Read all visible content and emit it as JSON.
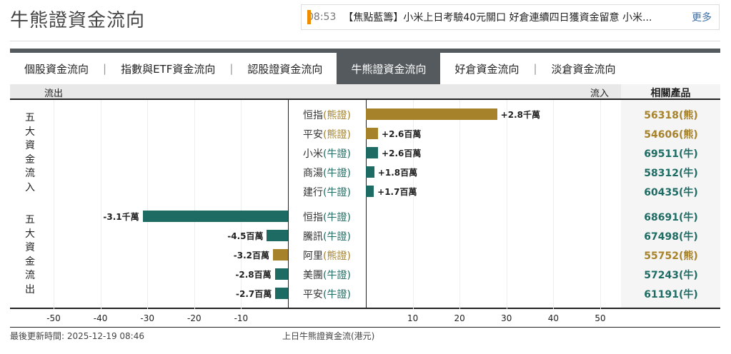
{
  "title": "牛熊證資金流向",
  "news": {
    "time": "08:53",
    "headline": "【焦點藍籌】小米上日考驗40元關口 好倉連續四日獲資金留意 小米...",
    "more": "更多"
  },
  "tabs": [
    {
      "label": "個股資金流向"
    },
    {
      "label": "指數與ETF資金流向"
    },
    {
      "label": "認股證資金流向"
    },
    {
      "label": "牛熊證資金流向",
      "active": true
    },
    {
      "label": "好倉資金流向"
    },
    {
      "label": "淡倉資金流向"
    }
  ],
  "header": {
    "outflow": "流出",
    "inflow": "流入",
    "products": "相關產品"
  },
  "groups": {
    "inflow": "五大資金流入",
    "outflow": "五大資金流出"
  },
  "colors": {
    "bear": "#a6822a",
    "bull": "#1e6b63"
  },
  "chart_data": {
    "type": "bar",
    "xlim": [
      -50,
      50
    ],
    "ticks": [
      "-50",
      "-40",
      "-30",
      "-20",
      "-10",
      "10",
      "20",
      "30",
      "40",
      "50"
    ],
    "xlabel": "上日牛熊證資金流(港元)",
    "inflow": [
      {
        "name": "恒指",
        "kind": "(熊證)",
        "type": "bear",
        "value": 28,
        "label": "+2.8千萬",
        "product": "56318(熊)"
      },
      {
        "name": "平安",
        "kind": "(熊證)",
        "type": "bear",
        "value": 2.6,
        "label": "+2.6百萬",
        "product": "54606(熊)"
      },
      {
        "name": "小米",
        "kind": "(牛證)",
        "type": "bull",
        "value": 2.6,
        "label": "+2.6百萬",
        "product": "69511(牛)"
      },
      {
        "name": "商湯",
        "kind": "(牛證)",
        "type": "bull",
        "value": 1.8,
        "label": "+1.8百萬",
        "product": "58312(牛)"
      },
      {
        "name": "建行",
        "kind": "(牛證)",
        "type": "bull",
        "value": 1.7,
        "label": "+1.7百萬",
        "product": "60435(牛)"
      }
    ],
    "outflow": [
      {
        "name": "恒指",
        "kind": "(牛證)",
        "type": "bull",
        "value": -31,
        "label": "-3.1千萬",
        "product": "68691(牛)"
      },
      {
        "name": "騰訊",
        "kind": "(牛證)",
        "type": "bull",
        "value": -4.5,
        "label": "-4.5百萬",
        "product": "67498(牛)"
      },
      {
        "name": "阿里",
        "kind": "(熊證)",
        "type": "bear",
        "value": -3.2,
        "label": "-3.2百萬",
        "product": "55752(熊)"
      },
      {
        "name": "美團",
        "kind": "(牛證)",
        "type": "bull",
        "value": -2.8,
        "label": "-2.8百萬",
        "product": "57243(牛)"
      },
      {
        "name": "平安",
        "kind": "(牛證)",
        "type": "bull",
        "value": -2.7,
        "label": "-2.7百萬",
        "product": "61191(牛)"
      }
    ]
  },
  "footer": {
    "updated": "最後更新時間: 2025-12-19 08:46"
  }
}
